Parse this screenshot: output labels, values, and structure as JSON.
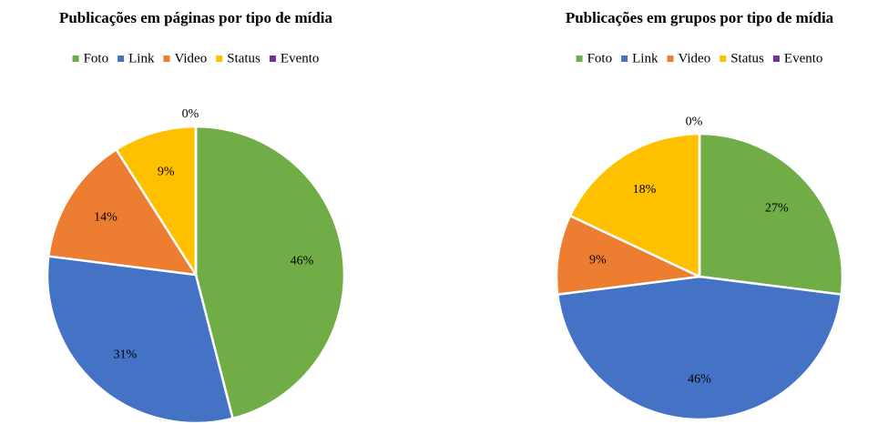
{
  "chart_data": [
    {
      "type": "pie",
      "title": "Publicações em páginas por tipo de mídia",
      "categories": [
        "Foto",
        "Link",
        "Video",
        "Status",
        "Evento"
      ],
      "values": [
        46,
        31,
        14,
        9,
        0
      ],
      "value_labels": [
        "46%",
        "31%",
        "14%",
        "9%",
        "0%"
      ],
      "colors": [
        "#70ad47",
        "#4472c4",
        "#ed7d31",
        "#ffc000",
        "#7030a0"
      ],
      "legend": "top"
    },
    {
      "type": "pie",
      "title": "Publicações em grupos por tipo de mídia",
      "categories": [
        "Foto",
        "Link",
        "Video",
        "Status",
        "Evento"
      ],
      "values": [
        27,
        46,
        9,
        18,
        0
      ],
      "value_labels": [
        "27%",
        "46%",
        "9%",
        "18%",
        "0%"
      ],
      "colors": [
        "#70ad47",
        "#4472c4",
        "#ed7d31",
        "#ffc000",
        "#7030a0"
      ],
      "legend": "top"
    }
  ]
}
